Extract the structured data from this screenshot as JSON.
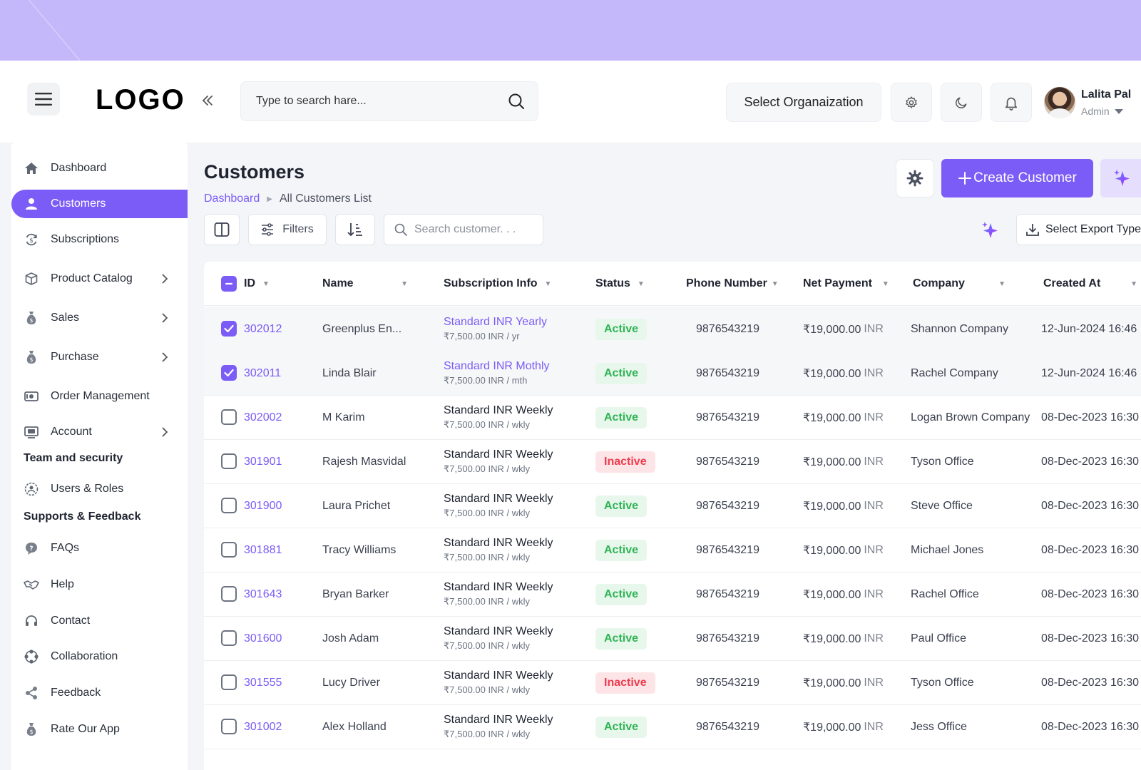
{
  "header": {
    "logo": "LOGO",
    "search_placeholder": "Type to search hare...",
    "org_select": "Select Organaization",
    "user": {
      "name": "Lalita Pal",
      "role": "Admin"
    }
  },
  "sidebar": {
    "items": [
      {
        "label": "Dashboard",
        "icon": "home-icon"
      },
      {
        "label": "Customers",
        "icon": "user-icon",
        "active": true
      },
      {
        "label": "Subscriptions",
        "icon": "refresh-dollar-icon"
      },
      {
        "label": "Product Catalog",
        "icon": "box-icon",
        "chevron": true
      },
      {
        "label": "Sales",
        "icon": "money-bag-icon",
        "chevron": true
      },
      {
        "label": "Purchase",
        "icon": "money-bag-icon",
        "chevron": true
      },
      {
        "label": "Order Management",
        "icon": "cash-icon"
      },
      {
        "label": "Account",
        "icon": "wallet-icon",
        "chevron": true
      }
    ],
    "section_team": "Team and security",
    "team_items": [
      {
        "label": "Users & Roles",
        "icon": "gear-user-icon"
      }
    ],
    "section_support": "Supports & Feedback",
    "support_items": [
      {
        "label": "FAQs",
        "icon": "chat-question-icon"
      },
      {
        "label": "Help",
        "icon": "handshake-icon"
      },
      {
        "label": "Contact",
        "icon": "headset-icon"
      },
      {
        "label": "Collaboration",
        "icon": "collaboration-icon"
      },
      {
        "label": "Feedback",
        "icon": "share-icon"
      },
      {
        "label": "Rate Our App",
        "icon": "money-bag-icon"
      }
    ]
  },
  "page": {
    "title": "Customers",
    "breadcrumb": {
      "root": "Dashboard",
      "current": "All Customers List"
    },
    "create_button": "Create Customer",
    "filters_label": "Filters",
    "search_placeholder": "Search customer. . .",
    "export_label": "Select Export Type"
  },
  "colors": {
    "accent": "#7c5cf6",
    "top_band": "#c4b8fb",
    "active_badge": "#2fb455",
    "inactive_badge": "#ee3b4e"
  },
  "table": {
    "columns": [
      "ID",
      "Name",
      "Subscription Info",
      "Status",
      "Phone Number",
      "Net Payment",
      "Company",
      "Created At"
    ],
    "rows": [
      {
        "id": "302012",
        "name": "Greenplus En...",
        "plan": "Standard INR Yearly",
        "price": "₹7,500.00 INR / yr",
        "plan_link": true,
        "status": "Active",
        "phone": "9876543219",
        "net": "₹19,000.00",
        "currency": "INR",
        "company": "Shannon Company",
        "created": "12-Jun-2024 16:46",
        "checked": true
      },
      {
        "id": "302011",
        "name": "Linda Blair",
        "plan": "Standard INR Mothly",
        "price": "₹7,500.00 INR / mth",
        "plan_link": true,
        "status": "Active",
        "phone": "9876543219",
        "net": "₹19,000.00",
        "currency": "INR",
        "company": "Rachel Company",
        "created": "12-Jun-2024 16:46",
        "checked": true
      },
      {
        "id": "302002",
        "name": "M Karim",
        "plan": "Standard INR Weekly",
        "price": "₹7,500.00 INR / wkly",
        "plan_link": false,
        "status": "Active",
        "phone": "9876543219",
        "net": "₹19,000.00",
        "currency": "INR",
        "company": "Logan Brown Company",
        "created": "08-Dec-2023 16:30",
        "checked": false
      },
      {
        "id": "301901",
        "name": "Rajesh Masvidal",
        "plan": "Standard INR Weekly",
        "price": "₹7,500.00 INR / wkly",
        "plan_link": false,
        "status": "Inactive",
        "phone": "9876543219",
        "net": "₹19,000.00",
        "currency": "INR",
        "company": "Tyson Office",
        "created": "08-Dec-2023 16:30",
        "checked": false
      },
      {
        "id": "301900",
        "name": "Laura Prichet",
        "plan": "Standard INR Weekly",
        "price": "₹7,500.00 INR / wkly",
        "plan_link": false,
        "status": "Active",
        "phone": "9876543219",
        "net": "₹19,000.00",
        "currency": "INR",
        "company": "Steve Office",
        "created": "08-Dec-2023 16:30",
        "checked": false
      },
      {
        "id": "301881",
        "name": "Tracy Williams",
        "plan": "Standard INR Weekly",
        "price": "₹7,500.00 INR / wkly",
        "plan_link": false,
        "status": "Active",
        "phone": "9876543219",
        "net": "₹19,000.00",
        "currency": "INR",
        "company": "Michael Jones",
        "created": "08-Dec-2023 16:30",
        "checked": false
      },
      {
        "id": "301643",
        "name": "Bryan Barker",
        "plan": "Standard INR Weekly",
        "price": "₹7,500.00 INR / wkly",
        "plan_link": false,
        "status": "Active",
        "phone": "9876543219",
        "net": "₹19,000.00",
        "currency": "INR",
        "company": "Rachel Office",
        "created": "08-Dec-2023 16:30",
        "checked": false
      },
      {
        "id": "301600",
        "name": "Josh Adam",
        "plan": "Standard INR Weekly",
        "price": "₹7,500.00 INR / wkly",
        "plan_link": false,
        "status": "Active",
        "phone": "9876543219",
        "net": "₹19,000.00",
        "currency": "INR",
        "company": "Paul Office",
        "created": "08-Dec-2023 16:30",
        "checked": false
      },
      {
        "id": "301555",
        "name": "Lucy Driver",
        "plan": "Standard INR Weekly",
        "price": "₹7,500.00 INR / wkly",
        "plan_link": false,
        "status": "Inactive",
        "phone": "9876543219",
        "net": "₹19,000.00",
        "currency": "INR",
        "company": "Tyson Office",
        "created": "08-Dec-2023 16:30",
        "checked": false
      },
      {
        "id": "301002",
        "name": "Alex Holland",
        "plan": "Standard INR Weekly",
        "price": "₹7,500.00 INR / wkly",
        "plan_link": false,
        "status": "Active",
        "phone": "9876543219",
        "net": "₹19,000.00",
        "currency": "INR",
        "company": "Jess Office",
        "created": "08-Dec-2023 16:30",
        "checked": false
      }
    ]
  }
}
